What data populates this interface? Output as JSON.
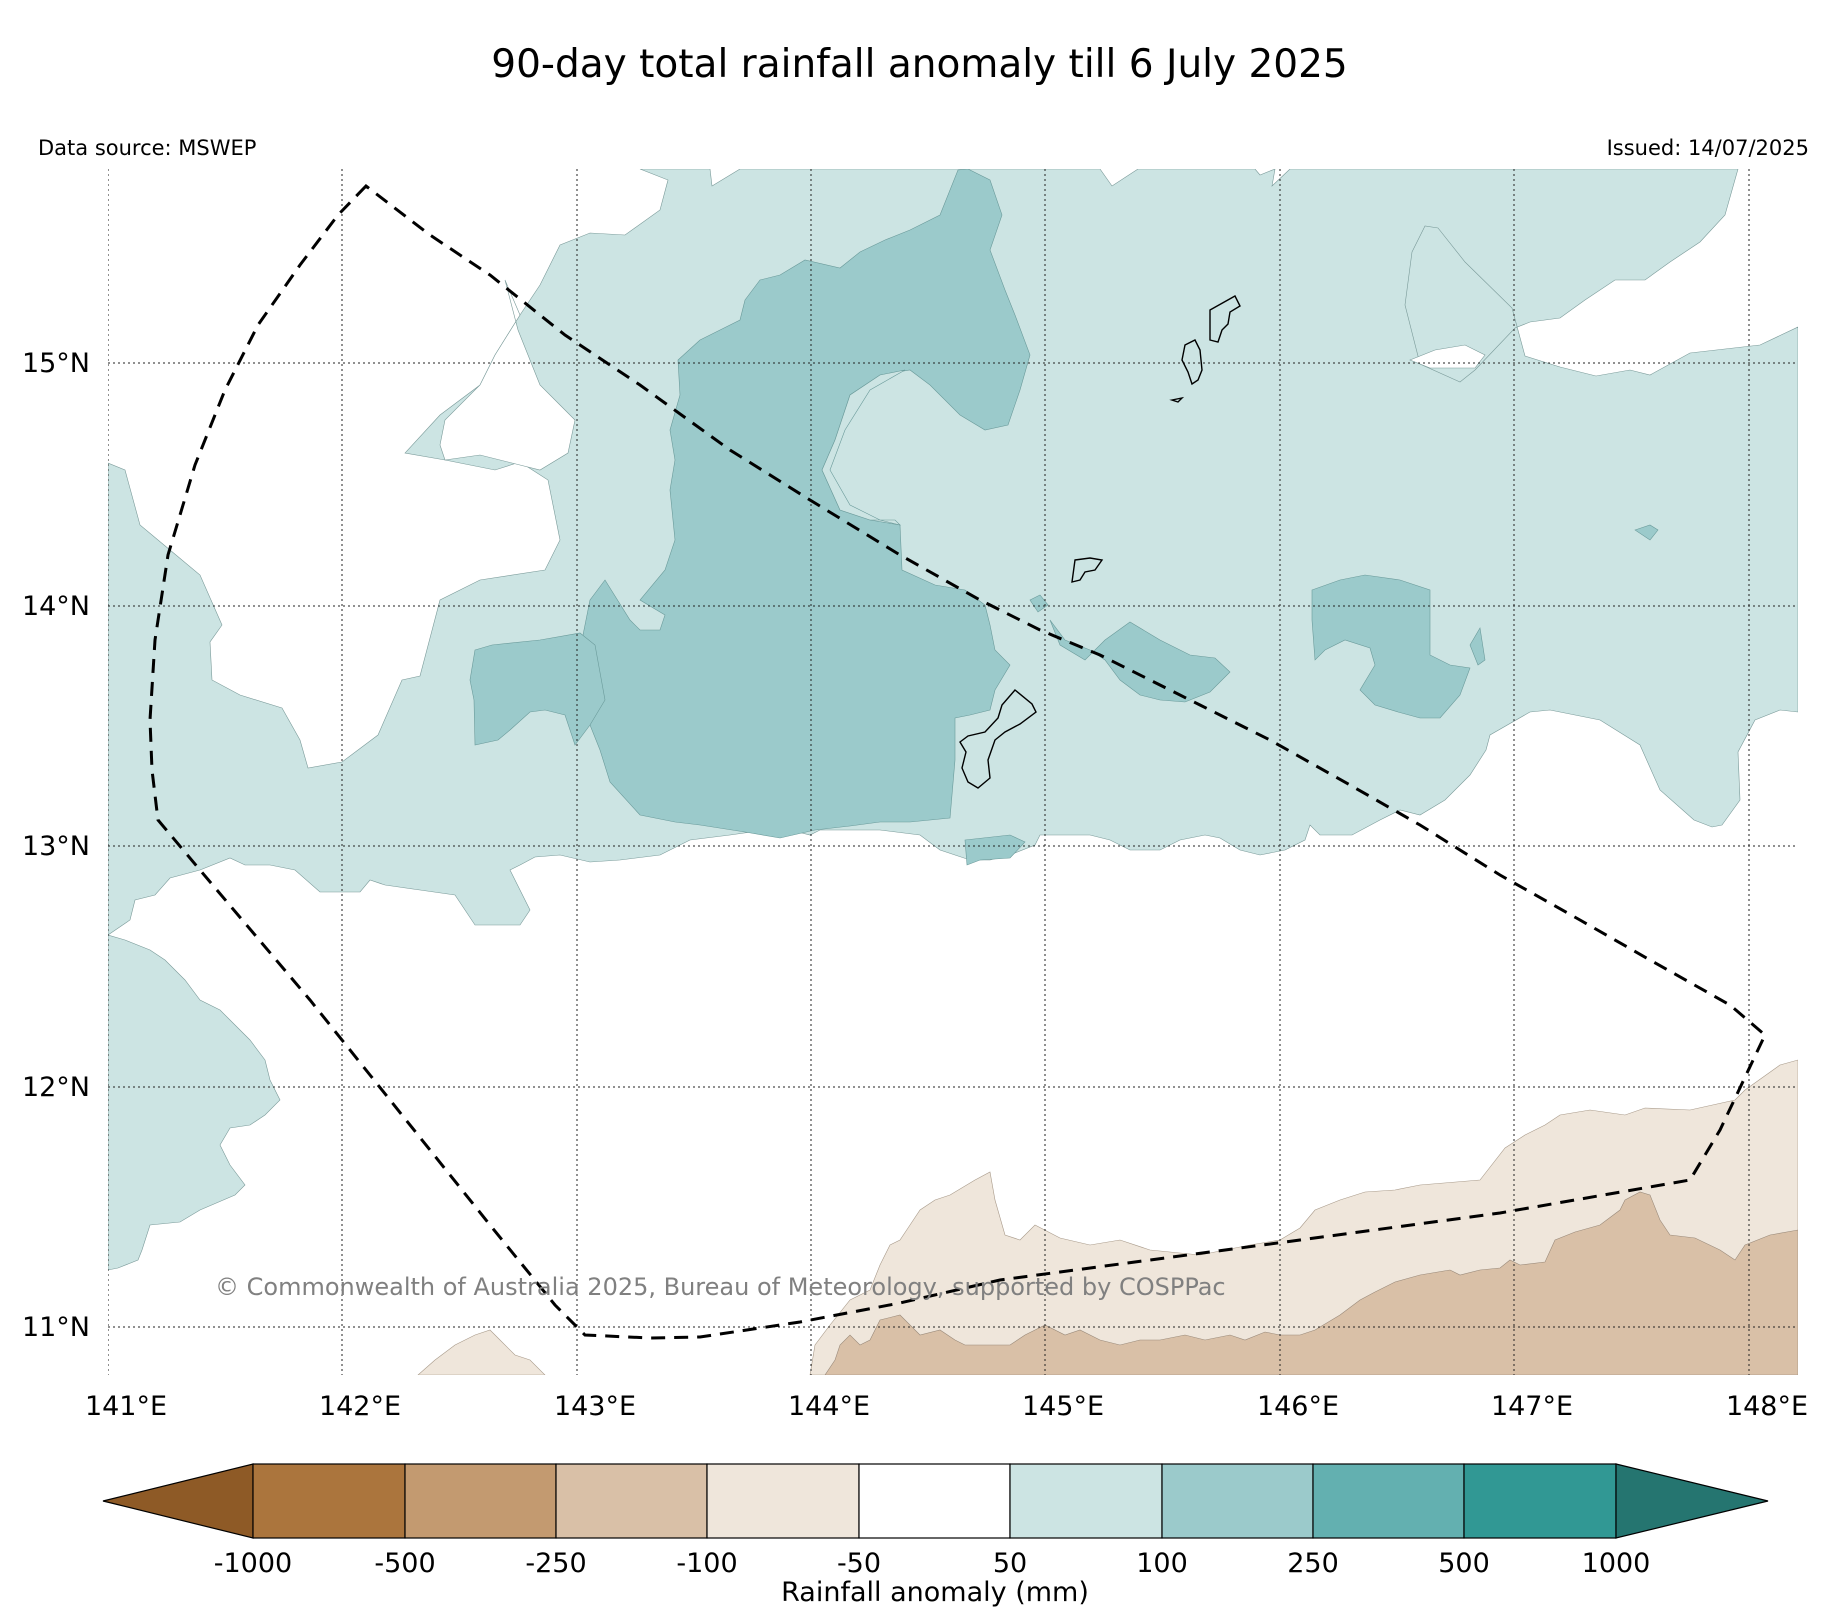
{
  "title": "90-day total rainfall anomaly till 6 July 2025",
  "data_source": "Data source: MSWEP",
  "issued": "Issued: 14/07/2025",
  "copyright": "© Commonwealth of Australia 2025, Bureau of Meteorology, supported by COSPPac",
  "map": {
    "lon_ticks": [
      "141°E",
      "142°E",
      "143°E",
      "144°E",
      "145°E",
      "146°E",
      "147°E",
      "148°E"
    ],
    "lat_ticks": [
      "15°N",
      "14°N",
      "13°N",
      "12°N",
      "11°N"
    ],
    "lon_range": [
      141,
      148.2
    ],
    "lat_range": [
      10.8,
      15.8
    ],
    "gridlines": true
  },
  "colorbar": {
    "label": "Rainfall anomaly (mm)",
    "tick_labels": [
      "-1000",
      "-500",
      "-250",
      "-100",
      "-50",
      "50",
      "100",
      "250",
      "500",
      "1000"
    ],
    "colors": {
      "below_min": "#8e5a26",
      "n1000_n500": "#ab753d",
      "n500_n250": "#c39a70",
      "n250_n100": "#d9c0a7",
      "n100_n50": "#efe6db",
      "n50_50": "#ffffff",
      "p50_100": "#cce4e3",
      "p100_250": "#9bcacb",
      "p250_500": "#63b0b0",
      "p500_1000": "#319894",
      "above_max": "#257570"
    }
  }
}
